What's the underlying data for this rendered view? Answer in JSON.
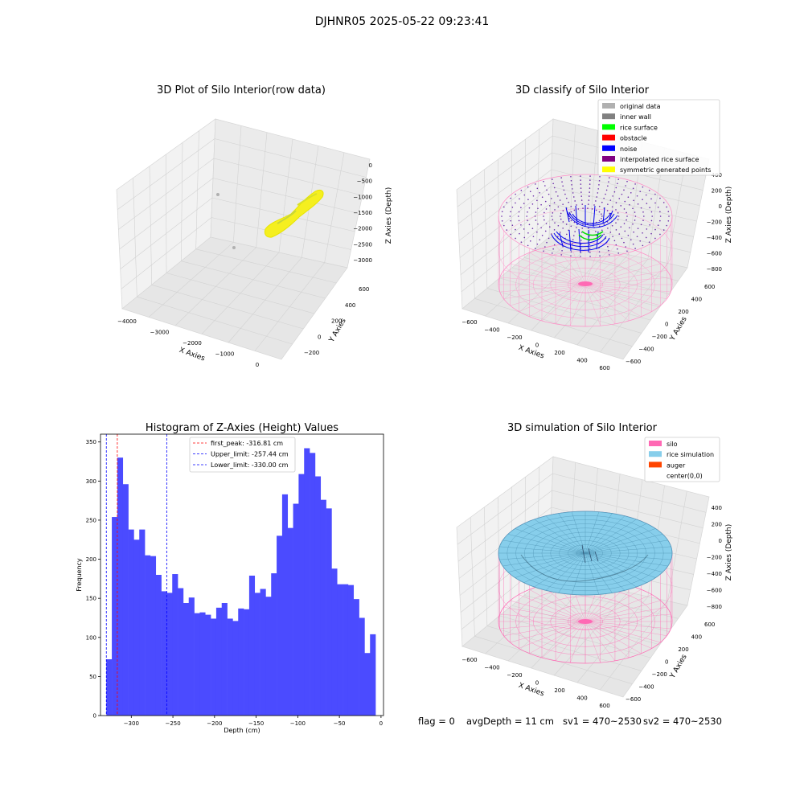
{
  "suptitle": "DJHNR05 2025-05-22 09:23:41",
  "panels": {
    "raw": {
      "title": "3D Plot of Silo Interior(row data)",
      "xlabel": "X Axies",
      "ylabel": "Y Axies",
      "zlabel": "Z Axies (Depth)",
      "xticks": [
        "-4000",
        "-3000",
        "-2000",
        "-1000",
        "0"
      ],
      "yticks": [
        "-200",
        "0",
        "200",
        "400",
        "600"
      ],
      "zticks": [
        "0",
        "-500",
        "-1000",
        "-1500",
        "-2000",
        "-2500",
        "-3000"
      ]
    },
    "classify": {
      "title": "3D classify of Silo Interior",
      "xlabel": "X Axies",
      "ylabel": "Y Axies",
      "zlabel": "Z Axies (Depth)",
      "xticks": [
        "-600",
        "-400",
        "-200",
        "0",
        "200",
        "400",
        "600"
      ],
      "yticks": [
        "-600",
        "-400",
        "-200",
        "0",
        "200",
        "400",
        "600"
      ],
      "zticks": [
        "400",
        "200",
        "0",
        "-200",
        "-400",
        "-600",
        "-800"
      ],
      "legend": [
        {
          "label": "original data",
          "color": "#b0b0b0"
        },
        {
          "label": "inner wall",
          "color": "#808080"
        },
        {
          "label": "rice surface",
          "color": "#00ff00"
        },
        {
          "label": "obstacle",
          "color": "#ff0000"
        },
        {
          "label": "noise",
          "color": "#0000ff"
        },
        {
          "label": "interpolated rice surface",
          "color": "#800080"
        },
        {
          "label": "symmetric generated points",
          "color": "#ffff00"
        }
      ]
    },
    "simulation": {
      "title": "3D simulation of Silo Interior",
      "xlabel": "X Axies",
      "ylabel": "Y Axies",
      "zlabel": "Z Axies (Depth)",
      "xticks": [
        "-600",
        "-400",
        "-200",
        "0",
        "200",
        "400",
        "600"
      ],
      "yticks": [
        "-600",
        "-400",
        "-200",
        "0",
        "200",
        "400",
        "600"
      ],
      "zticks": [
        "400",
        "200",
        "0",
        "-200",
        "-400",
        "-600",
        "-800"
      ],
      "legend": [
        {
          "label": "silo",
          "color": "#ff69b4"
        },
        {
          "label": "rice simulation",
          "color": "#87ceeb"
        },
        {
          "label": "auger",
          "color": "#ff4500"
        },
        {
          "label": "center(0,0)",
          "color": "#ffffff"
        }
      ]
    }
  },
  "status": {
    "flag": "flag = 0",
    "avg_depth": "avgDepth = 11 cm",
    "sv1": "sv1 = 470~2530",
    "sv2": "sv2 = 470~2530"
  },
  "chart_data": {
    "type": "bar",
    "title": "Histogram of Z-Axies (Height) Values",
    "xlabel": "Depth (cm)",
    "ylabel": "Frequency",
    "xlim": [
      -337,
      3
    ],
    "ylim": [
      0,
      360
    ],
    "xticks": [
      -300,
      -250,
      -200,
      -150,
      -100,
      -50,
      0
    ],
    "yticks": [
      0,
      50,
      100,
      150,
      200,
      250,
      300,
      350
    ],
    "bar_color": "#4b4bff",
    "bin_start": -330,
    "bin_width": 6.6,
    "values": [
      72,
      254,
      330,
      296,
      238,
      225,
      238,
      205,
      204,
      180,
      159,
      157,
      181,
      163,
      144,
      151,
      131,
      132,
      129,
      124,
      138,
      144,
      124,
      121,
      137,
      136,
      179,
      157,
      162,
      152,
      182,
      230,
      283,
      240,
      271,
      309,
      342,
      336,
      306,
      276,
      265,
      188,
      168,
      168,
      167,
      149,
      125,
      80,
      104
    ],
    "legend": [
      {
        "label": "first_peak: -316.81 cm",
        "value": -316.81,
        "color": "#ff0000"
      },
      {
        "label": "Upper_limit: -257.44 cm",
        "value": -257.44,
        "color": "#0000ff"
      },
      {
        "label": "Lower_limit: -330.00 cm",
        "value": -330.0,
        "color": "#0000ff"
      }
    ]
  }
}
